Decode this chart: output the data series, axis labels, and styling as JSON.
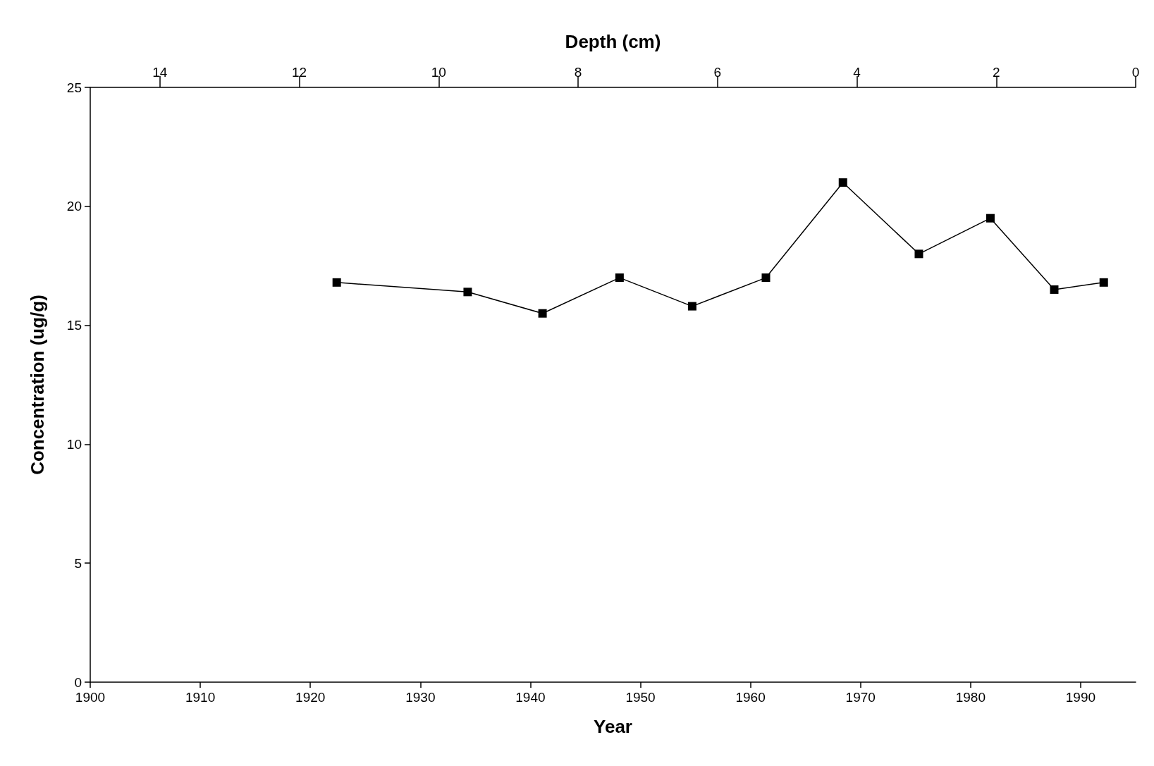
{
  "chart_data": {
    "type": "line",
    "xlabel": "Year",
    "x2label": "Depth (cm)",
    "ylabel": "Concentration (ug/g)",
    "x": [
      1922.4,
      1934.3,
      1941.1,
      1948.1,
      1954.7,
      1961.4,
      1968.4,
      1975.3,
      1981.8,
      1987.6,
      1992.1
    ],
    "series": [
      {
        "color": "#000000",
        "values": [
          16.8,
          16.4,
          15.5,
          17,
          15.8,
          17,
          21,
          18,
          19.5,
          16.5,
          16.8
        ]
      }
    ],
    "xlim": [
      1900,
      1995
    ],
    "xticks": [
      1900,
      1910,
      1920,
      1930,
      1940,
      1950,
      1960,
      1970,
      1980,
      1990
    ],
    "x2lim": [
      15,
      0
    ],
    "x2ticks": [
      14,
      12,
      10,
      8,
      6,
      4,
      2,
      0
    ],
    "ylim": [
      0,
      25
    ],
    "yticks": [
      0,
      5,
      10,
      15,
      20,
      25
    ],
    "marker": "square",
    "line_style": "solid"
  }
}
